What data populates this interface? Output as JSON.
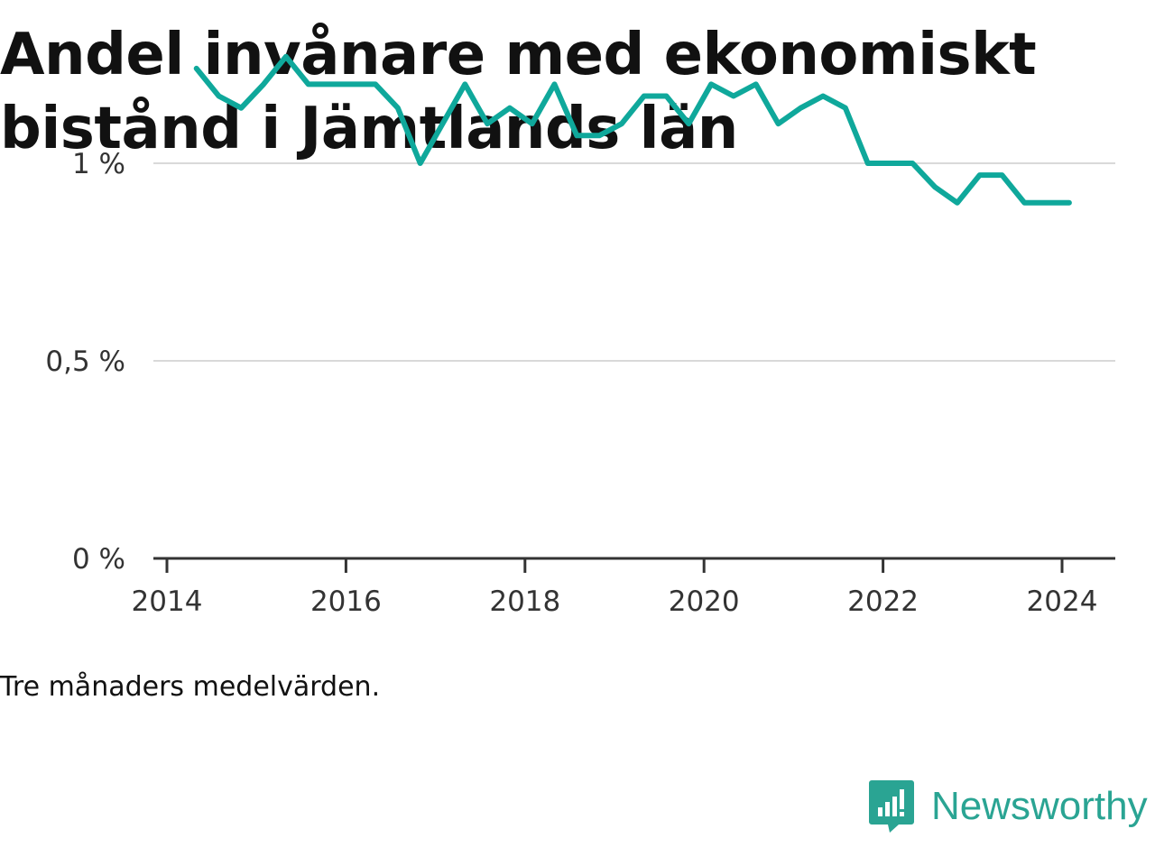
{
  "title": "Andel invånare med ekonomiskt bistånd i Jämtlands län",
  "footnote": "Tre månaders medelvärden.",
  "brand": {
    "name": "Newsworthy",
    "icon": "newsworthy-logo-icon",
    "color": "#2aa493"
  },
  "chart_data": {
    "type": "line",
    "title": "Andel invånare med ekonomiskt bistånd i Jämtlands län",
    "xlabel": "",
    "ylabel": "",
    "x_ticks": [
      "2014",
      "2016",
      "2018",
      "2020",
      "2022",
      "2024"
    ],
    "y_ticks": [
      {
        "value": 0,
        "label": "0 %"
      },
      {
        "value": 0.5,
        "label": "0,5 %"
      },
      {
        "value": 1,
        "label": "1 %"
      }
    ],
    "xlim": [
      2014.0,
      2024.6
    ],
    "ylim": [
      0,
      1.1
    ],
    "grid": true,
    "line_color": "#0fa89b",
    "series": [
      {
        "x": [
          2014.33,
          2014.58,
          2014.83,
          2015.08,
          2015.33,
          2015.58,
          2015.83,
          2016.08,
          2016.33,
          2016.58,
          2016.83,
          2017.08,
          2017.33,
          2017.58,
          2017.83,
          2018.08,
          2018.33,
          2018.58,
          2018.83,
          2019.08,
          2019.33,
          2019.58,
          2019.83,
          2020.08,
          2020.33,
          2020.58,
          2020.83,
          2021.08,
          2021.33,
          2021.58,
          2021.83,
          2022.08,
          2022.33,
          2022.58,
          2022.83,
          2023.08,
          2023.33,
          2023.58,
          2023.83,
          2024.08
        ],
        "values": [
          1.24,
          1.17,
          1.14,
          1.2,
          1.27,
          1.2,
          1.2,
          1.2,
          1.2,
          1.14,
          1.0,
          1.1,
          1.2,
          1.1,
          1.14,
          1.1,
          1.2,
          1.07,
          1.07,
          1.1,
          1.17,
          1.17,
          1.1,
          1.2,
          1.17,
          1.2,
          1.1,
          1.14,
          1.17,
          1.14,
          1.0,
          1.0,
          1.0,
          0.94,
          0.9,
          0.97,
          0.97,
          0.9,
          0.9,
          0.9
        ]
      }
    ]
  }
}
